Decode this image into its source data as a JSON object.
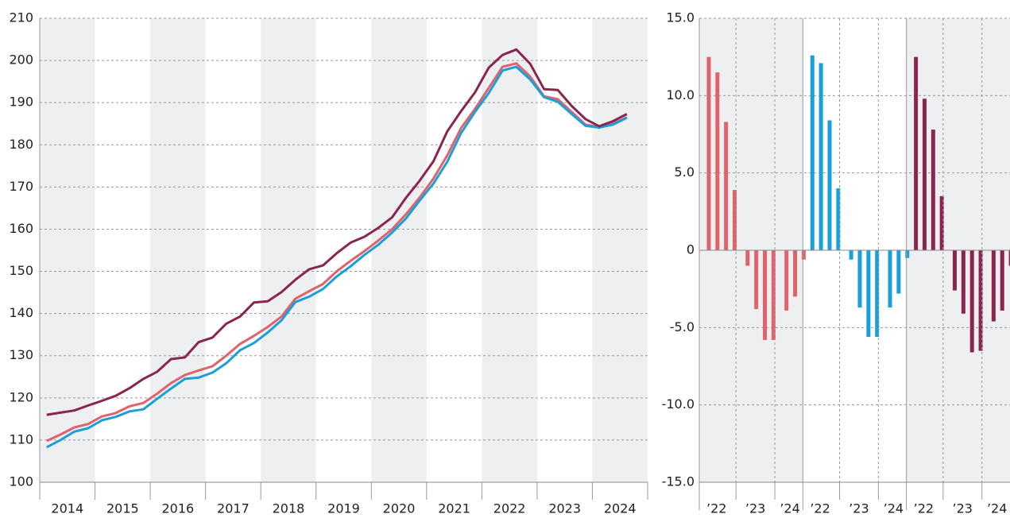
{
  "chart_data": [
    {
      "type": "line",
      "x": [
        2014.125,
        2014.375,
        2014.625,
        2014.875,
        2015.125,
        2015.375,
        2015.625,
        2015.875,
        2016.125,
        2016.375,
        2016.625,
        2016.875,
        2017.125,
        2017.375,
        2017.625,
        2017.875,
        2018.125,
        2018.375,
        2018.625,
        2018.875,
        2019.125,
        2019.375,
        2019.625,
        2019.875,
        2020.125,
        2020.375,
        2020.625,
        2020.875,
        2021.125,
        2021.375,
        2021.625,
        2021.875,
        2022.125,
        2022.375,
        2022.625,
        2022.875,
        2023.125,
        2023.375,
        2023.625,
        2023.875,
        2024.125,
        2024.375,
        2024.625
      ],
      "series": [
        {
          "color": "#e0636b",
          "values": [
            109.8,
            111.3,
            113,
            113.8,
            115.6,
            116.4,
            118,
            118.8,
            121,
            123.5,
            125.4,
            126.5,
            127.5,
            130,
            132.8,
            134.7,
            136.8,
            139.3,
            143.5,
            145.3,
            147,
            150,
            152.5,
            154.8,
            157.3,
            160,
            163.5,
            167.5,
            172,
            177.5,
            184,
            188.5,
            193.5,
            198.5,
            199.3,
            196.2,
            191.5,
            190.8,
            187.8,
            184.8,
            184.2,
            185,
            186.5
          ]
        },
        {
          "color": "#1aa0d8",
          "values": [
            108.3,
            110,
            112,
            112.8,
            114.7,
            115.5,
            116.8,
            117.3,
            119.8,
            122.2,
            124.5,
            124.8,
            126,
            128.2,
            131.3,
            133,
            135.5,
            138.4,
            142.7,
            144,
            145.8,
            148.8,
            151.2,
            153.9,
            156.3,
            159.2,
            162.5,
            166.8,
            170.8,
            176,
            182.8,
            187.8,
            192.3,
            197.6,
            198.5,
            195.5,
            191.3,
            190.2,
            187.3,
            184.5,
            184.1,
            184.8,
            186.4
          ]
        },
        {
          "color": "#8a2550",
          "values": [
            116,
            116.5,
            117,
            118.2,
            119.3,
            120.5,
            122.3,
            124.5,
            126.2,
            129.2,
            129.6,
            133.2,
            134.3,
            137.6,
            139.3,
            142.6,
            142.9,
            145.1,
            148,
            150.5,
            151.4,
            154.3,
            156.8,
            158.2,
            160.3,
            162.8,
            167.4,
            171.5,
            176.1,
            183.2,
            188,
            192.4,
            198.3,
            201.3,
            202.6,
            199.2,
            193.2,
            193,
            189.2,
            186.1,
            184.4,
            185.6,
            187.3
          ]
        }
      ],
      "xlim": [
        2014,
        2025
      ],
      "xticks": [
        {
          "value": 2014.5,
          "label": "2014"
        },
        {
          "value": 2015.5,
          "label": "2015"
        },
        {
          "value": 2016.5,
          "label": "2016"
        },
        {
          "value": 2017.5,
          "label": "2017"
        },
        {
          "value": 2018.5,
          "label": "2018"
        },
        {
          "value": 2019.5,
          "label": "2019"
        },
        {
          "value": 2020.5,
          "label": "2020"
        },
        {
          "value": 2021.5,
          "label": "2021"
        },
        {
          "value": 2022.5,
          "label": "2022"
        },
        {
          "value": 2023.5,
          "label": "2023"
        },
        {
          "value": 2024.5,
          "label": "2024"
        }
      ],
      "ylim": [
        100,
        210
      ],
      "yticks": [
        100,
        110,
        120,
        130,
        140,
        150,
        160,
        170,
        180,
        190,
        200,
        210
      ],
      "grid": true
    },
    {
      "type": "bar",
      "categories": [
        "’22",
        null,
        null,
        null,
        "’23",
        null,
        null,
        null,
        "’24",
        null,
        null
      ],
      "series": [
        {
          "color": "#e0636b",
          "values": [
            12.5,
            11.5,
            8.3,
            3.9,
            -1.0,
            -3.8,
            -5.8,
            -5.8,
            -3.9,
            -3.0,
            -0.6
          ]
        },
        {
          "color": "#1aa0d8",
          "values": [
            12.6,
            12.1,
            8.4,
            4.0,
            -0.6,
            -3.7,
            -5.6,
            -5.6,
            -3.7,
            -2.8,
            -0.5
          ]
        },
        {
          "color": "#8a2550",
          "values": [
            12.5,
            9.8,
            7.8,
            3.5,
            -2.6,
            -4.1,
            -6.6,
            -6.5,
            -4.6,
            -3.9,
            -1.0
          ]
        }
      ],
      "ylim": [
        -15,
        15
      ],
      "yticks": [
        {
          "value": -15,
          "label": "-15.0"
        },
        {
          "value": -10,
          "label": "-10.0"
        },
        {
          "value": -5,
          "label": "-5.0"
        },
        0,
        {
          "value": 5,
          "label": "5.0"
        },
        {
          "value": 10,
          "label": "10.0"
        },
        {
          "value": 15,
          "label": "15.0"
        }
      ],
      "grid": true
    }
  ]
}
